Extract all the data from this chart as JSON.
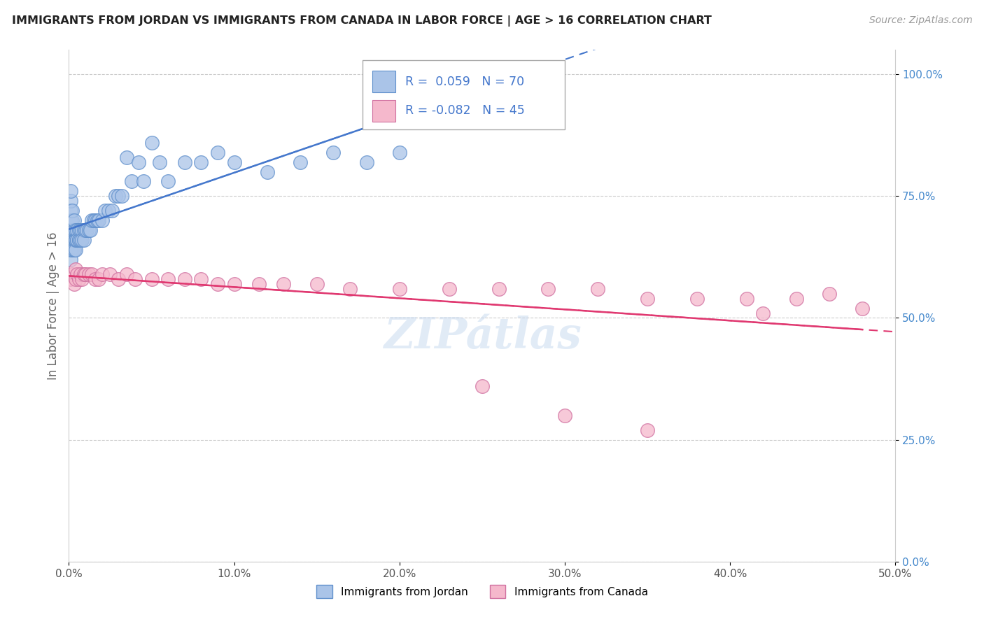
{
  "title": "IMMIGRANTS FROM JORDAN VS IMMIGRANTS FROM CANADA IN LABOR FORCE | AGE > 16 CORRELATION CHART",
  "source_text": "Source: ZipAtlas.com",
  "ylabel": "In Labor Force | Age > 16",
  "xlim": [
    0.0,
    0.5
  ],
  "ylim": [
    0.0,
    1.05
  ],
  "legend_label1": "Immigrants from Jordan",
  "legend_label2": "Immigrants from Canada",
  "R1": 0.059,
  "N1": 70,
  "R2": -0.082,
  "N2": 45,
  "color_jordan": "#aac4e8",
  "color_canada": "#f5b8cc",
  "line_color_jordan": "#4477cc",
  "line_color_canada": "#e03870",
  "dot_edge_jordan": "#6090cc",
  "dot_edge_canada": "#d070a0",
  "watermark": "ZIPátlas",
  "background_color": "#ffffff",
  "grid_color": "#cccccc",
  "jordan_x": [
    0.001,
    0.001,
    0.001,
    0.001,
    0.001,
    0.001,
    0.001,
    0.001,
    0.001,
    0.002,
    0.002,
    0.002,
    0.002,
    0.002,
    0.002,
    0.003,
    0.003,
    0.003,
    0.003,
    0.003,
    0.003,
    0.004,
    0.004,
    0.004,
    0.004,
    0.004,
    0.005,
    0.005,
    0.005,
    0.006,
    0.006,
    0.006,
    0.007,
    0.007,
    0.008,
    0.008,
    0.009,
    0.009,
    0.01,
    0.011,
    0.012,
    0.013,
    0.014,
    0.015,
    0.016,
    0.017,
    0.018,
    0.02,
    0.022,
    0.024,
    0.026,
    0.028,
    0.03,
    0.032,
    0.035,
    0.038,
    0.042,
    0.045,
    0.05,
    0.055,
    0.06,
    0.07,
    0.08,
    0.09,
    0.1,
    0.12,
    0.14,
    0.16,
    0.18,
    0.2
  ],
  "jordan_y": [
    0.62,
    0.64,
    0.66,
    0.68,
    0.7,
    0.72,
    0.74,
    0.76,
    0.66,
    0.64,
    0.66,
    0.68,
    0.7,
    0.72,
    0.66,
    0.64,
    0.66,
    0.68,
    0.7,
    0.66,
    0.64,
    0.66,
    0.68,
    0.66,
    0.64,
    0.66,
    0.66,
    0.68,
    0.66,
    0.66,
    0.68,
    0.66,
    0.68,
    0.66,
    0.68,
    0.66,
    0.68,
    0.66,
    0.68,
    0.68,
    0.68,
    0.68,
    0.7,
    0.7,
    0.7,
    0.7,
    0.7,
    0.7,
    0.72,
    0.72,
    0.72,
    0.75,
    0.75,
    0.75,
    0.83,
    0.78,
    0.82,
    0.78,
    0.86,
    0.82,
    0.78,
    0.82,
    0.82,
    0.84,
    0.82,
    0.8,
    0.82,
    0.84,
    0.82,
    0.84
  ],
  "canada_x": [
    0.001,
    0.002,
    0.003,
    0.004,
    0.004,
    0.005,
    0.006,
    0.007,
    0.008,
    0.009,
    0.01,
    0.012,
    0.014,
    0.016,
    0.018,
    0.02,
    0.025,
    0.03,
    0.035,
    0.04,
    0.05,
    0.06,
    0.07,
    0.08,
    0.09,
    0.1,
    0.115,
    0.13,
    0.15,
    0.17,
    0.2,
    0.23,
    0.26,
    0.29,
    0.32,
    0.35,
    0.38,
    0.41,
    0.44,
    0.46,
    0.48,
    0.35,
    0.3,
    0.25,
    0.42
  ],
  "canada_y": [
    0.58,
    0.59,
    0.57,
    0.58,
    0.6,
    0.59,
    0.58,
    0.59,
    0.58,
    0.59,
    0.59,
    0.59,
    0.59,
    0.58,
    0.58,
    0.59,
    0.59,
    0.58,
    0.59,
    0.58,
    0.58,
    0.58,
    0.58,
    0.58,
    0.57,
    0.57,
    0.57,
    0.57,
    0.57,
    0.56,
    0.56,
    0.56,
    0.56,
    0.56,
    0.56,
    0.54,
    0.54,
    0.54,
    0.54,
    0.55,
    0.52,
    0.27,
    0.3,
    0.36,
    0.51
  ]
}
